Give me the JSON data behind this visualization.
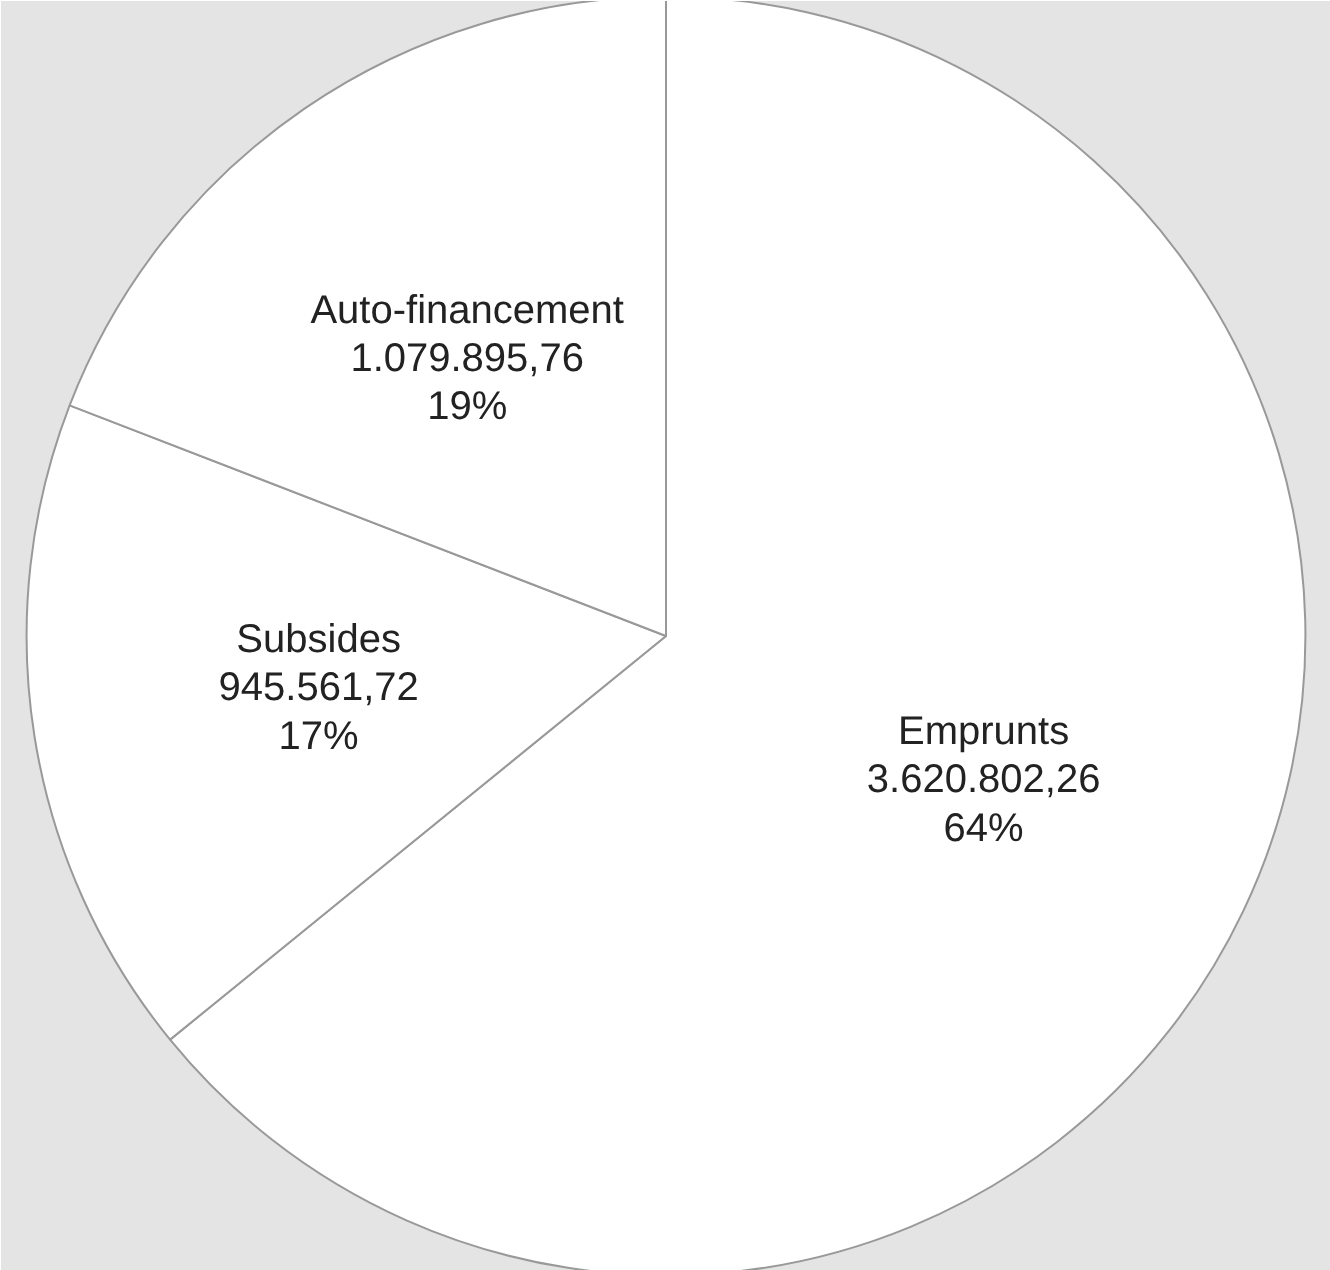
{
  "chart_data": {
    "type": "pie",
    "categories": [
      "Emprunts",
      "Subsides",
      "Auto-financement"
    ],
    "values": [
      3620802.26,
      945561.72,
      1079895.76
    ],
    "colors": [
      "#ffffff",
      "#ffffff",
      "#ffffff"
    ],
    "value_labels": [
      "3.620.802,26\n64%",
      "945.561,72\n17%",
      "1.079.895,76\n19%"
    ]
  }
}
